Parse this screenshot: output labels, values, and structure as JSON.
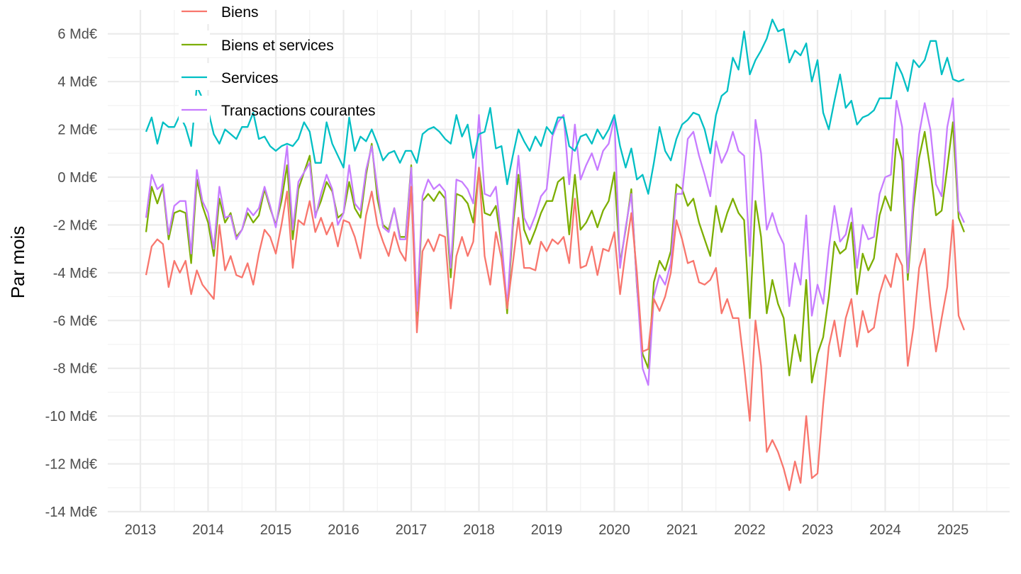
{
  "chart_data": {
    "type": "line",
    "ylabel": "Par mois",
    "xlabel": "",
    "x_start": "2013-02",
    "ylim": [
      -14,
      7
    ],
    "yticks": [
      {
        "value": 6,
        "label": "6 Md€"
      },
      {
        "value": 4,
        "label": "4 Md€"
      },
      {
        "value": 2,
        "label": "2 Md€"
      },
      {
        "value": 0,
        "label": "0 Md€"
      },
      {
        "value": -2,
        "label": "-2 Md€"
      },
      {
        "value": -4,
        "label": "-4 Md€"
      },
      {
        "value": -6,
        "label": "-6 Md€"
      },
      {
        "value": -8,
        "label": "-8 Md€"
      },
      {
        "value": -10,
        "label": "-10 Md€"
      },
      {
        "value": -12,
        "label": "-12 Md€"
      },
      {
        "value": -14,
        "label": "-14 Md€"
      }
    ],
    "xticks": [
      "2013",
      "2014",
      "2015",
      "2016",
      "2017",
      "2018",
      "2019",
      "2020",
      "2021",
      "2022",
      "2023",
      "2024",
      "2025"
    ],
    "grid": true,
    "legend_position": "top-left",
    "series": [
      {
        "name": "Biens",
        "color": "#F8766D",
        "values": [
          -4.1,
          -2.9,
          -2.6,
          -2.8,
          -4.6,
          -3.5,
          -4.0,
          -3.5,
          -4.9,
          -3.9,
          -4.5,
          -4.8,
          -5.1,
          -2.0,
          -3.9,
          -3.3,
          -4.1,
          -4.2,
          -3.6,
          -4.5,
          -3.2,
          -2.2,
          -2.5,
          -3.2,
          -2.0,
          -0.6,
          -3.8,
          -1.8,
          -2.0,
          -1.0,
          -2.3,
          -1.7,
          -2.4,
          -1.9,
          -2.9,
          -1.8,
          -1.9,
          -2.5,
          -3.4,
          -1.6,
          -0.6,
          -2.0,
          -2.7,
          -3.3,
          -2.3,
          -3.1,
          -3.5,
          -0.4,
          -6.5,
          -3.1,
          -2.6,
          -3.1,
          -2.4,
          -2.5,
          -5.5,
          -3.3,
          -2.5,
          -3.3,
          -2.7,
          0.4,
          -3.3,
          -4.5,
          -2.3,
          -3.4,
          -5.5,
          -3.6,
          -1.7,
          -3.8,
          -3.8,
          -3.9,
          -2.7,
          -3.1,
          -2.6,
          -2.8,
          -2.5,
          -3.6,
          -0.9,
          -3.8,
          -3.7,
          -2.9,
          -4.1,
          -3.0,
          -3.1,
          -2.3,
          -4.9,
          -3.1,
          -1.5,
          -4.0,
          -7.3,
          -7.2,
          -5.1,
          -5.6,
          -5.0,
          -4.0,
          -1.8,
          -2.6,
          -3.6,
          -3.5,
          -4.4,
          -4.5,
          -4.3,
          -3.8,
          -5.7,
          -5.1,
          -5.9,
          -5.9,
          -7.9,
          -10.2,
          -6.0,
          -7.9,
          -11.5,
          -11.0,
          -11.5,
          -12.2,
          -13.1,
          -11.9,
          -12.8,
          -10.0,
          -12.6,
          -12.4,
          -9.5,
          -7.1,
          -6.0,
          -7.5,
          -5.9,
          -5.1,
          -7.1,
          -5.6,
          -6.5,
          -6.3,
          -4.9,
          -4.1,
          -4.6,
          -3.2,
          -3.7,
          -7.9,
          -6.3,
          -3.8,
          -3.0,
          -5.4,
          -7.3,
          -5.9,
          -4.6,
          -1.8,
          -5.8,
          -6.4
        ]
      },
      {
        "name": "Biens et services",
        "color": "#7CAE00",
        "values": [
          -2.3,
          -0.4,
          -1.1,
          -0.4,
          -2.6,
          -1.5,
          -1.4,
          -1.5,
          -3.6,
          -0.1,
          -1.2,
          -1.9,
          -3.3,
          -0.9,
          -1.9,
          -1.5,
          -2.5,
          -2.2,
          -1.5,
          -1.9,
          -1.6,
          -0.5,
          -1.3,
          -2.0,
          -1.0,
          0.5,
          -2.6,
          -0.5,
          0.2,
          0.9,
          -1.6,
          -1.0,
          -0.2,
          -0.6,
          -1.7,
          -1.5,
          -0.2,
          -1.3,
          -1.7,
          0.1,
          1.4,
          -0.9,
          -2.0,
          -2.2,
          -1.3,
          -2.5,
          -2.5,
          0.5,
          -6.1,
          -1.0,
          -0.7,
          -1.0,
          -0.6,
          -0.9,
          -4.2,
          -0.7,
          -0.8,
          -1.1,
          -1.9,
          0.4,
          -1.5,
          -1.6,
          -1.2,
          -2.8,
          -5.7,
          -2.1,
          0.1,
          -2.2,
          -2.8,
          -2.2,
          -1.5,
          -1.0,
          -1.0,
          -0.2,
          0.0,
          -2.4,
          0.1,
          -2.2,
          -1.9,
          -1.4,
          -2.1,
          -1.4,
          -1.0,
          0.2,
          -3.6,
          -2.2,
          -0.5,
          -4.6,
          -7.4,
          -8.0,
          -4.4,
          -3.5,
          -3.9,
          -3.1,
          -0.3,
          -0.5,
          -1.2,
          -0.9,
          -1.9,
          -2.6,
          -3.3,
          -1.2,
          -2.3,
          -1.5,
          -0.9,
          -1.5,
          -1.8,
          -5.9,
          -1.0,
          -2.5,
          -5.7,
          -4.3,
          -5.3,
          -5.9,
          -8.3,
          -6.6,
          -7.7,
          -4.3,
          -8.6,
          -7.4,
          -6.7,
          -5.0,
          -2.7,
          -3.2,
          -3.0,
          -1.9,
          -4.9,
          -3.2,
          -3.9,
          -3.4,
          -1.6,
          -0.8,
          -1.4,
          1.6,
          0.7,
          -4.3,
          -1.3,
          0.8,
          1.9,
          0.3,
          -1.6,
          -1.4,
          0.4,
          2.3,
          -1.7,
          -2.3
        ]
      },
      {
        "name": "Services",
        "color": "#00BFC4",
        "values": [
          1.9,
          2.5,
          1.4,
          2.3,
          2.1,
          2.1,
          2.6,
          2.1,
          1.3,
          3.8,
          3.3,
          2.8,
          1.8,
          1.4,
          2.0,
          1.8,
          1.6,
          2.1,
          2.1,
          2.7,
          1.6,
          1.7,
          1.3,
          1.1,
          1.3,
          1.4,
          1.3,
          1.6,
          2.3,
          1.9,
          0.6,
          0.6,
          2.3,
          1.4,
          0.9,
          0.4,
          2.5,
          1.1,
          1.7,
          1.5,
          2.0,
          1.4,
          0.7,
          1.0,
          1.1,
          0.6,
          1.1,
          1.1,
          0.6,
          1.8,
          2.0,
          2.1,
          1.9,
          1.6,
          1.4,
          2.6,
          1.7,
          2.2,
          0.8,
          1.8,
          1.9,
          2.9,
          1.2,
          1.3,
          -0.3,
          0.9,
          2.0,
          1.5,
          1.1,
          1.7,
          1.3,
          2.1,
          1.8,
          2.5,
          2.5,
          1.3,
          1.1,
          1.7,
          1.8,
          1.4,
          2.0,
          1.6,
          2.0,
          2.6,
          1.3,
          0.4,
          1.2,
          -0.1,
          0.1,
          -0.7,
          0.6,
          2.1,
          1.1,
          0.7,
          1.6,
          2.2,
          2.4,
          2.7,
          2.6,
          2.0,
          1.0,
          2.6,
          3.4,
          3.6,
          5.0,
          4.5,
          6.1,
          4.3,
          4.9,
          5.3,
          5.8,
          6.6,
          6.1,
          6.2,
          4.8,
          5.3,
          5.1,
          5.6,
          4.0,
          4.9,
          2.7,
          2.0,
          3.2,
          4.3,
          2.9,
          3.2,
          2.2,
          2.5,
          2.6,
          2.8,
          3.3,
          3.3,
          3.3,
          4.8,
          4.3,
          3.6,
          4.9,
          4.6,
          4.9,
          5.7,
          5.7,
          4.3,
          5.0,
          4.1,
          4.0,
          4.1
        ]
      },
      {
        "name": "Transactions courantes",
        "color": "#C77CFF",
        "values": [
          -1.7,
          0.1,
          -0.5,
          -0.3,
          -2.4,
          -1.2,
          -1.0,
          -1.0,
          -3.2,
          0.3,
          -1.0,
          -1.5,
          -3.0,
          -0.4,
          -1.7,
          -1.6,
          -2.6,
          -2.2,
          -1.3,
          -1.6,
          -1.3,
          -0.4,
          -1.2,
          -2.1,
          -0.6,
          1.3,
          -2.2,
          -0.2,
          0.2,
          0.6,
          -1.7,
          -0.7,
          0.1,
          -0.5,
          -2.0,
          -1.5,
          0.5,
          -1.1,
          -1.4,
          0.3,
          1.3,
          -0.5,
          -2.1,
          -2.3,
          -1.3,
          -2.6,
          -2.6,
          0.4,
          -5.6,
          -0.8,
          -0.1,
          -0.5,
          -0.3,
          -0.6,
          -3.8,
          -0.1,
          -0.2,
          -0.5,
          -1.1,
          2.6,
          -0.7,
          -0.8,
          -0.4,
          -2.6,
          -5.4,
          -1.8,
          0.9,
          -1.7,
          -2.2,
          -1.6,
          -0.8,
          -0.5,
          1.7,
          2.3,
          2.6,
          -0.3,
          2.2,
          -0.1,
          0.5,
          1.0,
          0.3,
          1.1,
          1.4,
          2.5,
          -3.8,
          -2.1,
          -0.7,
          -4.5,
          -8.0,
          -8.7,
          -5.0,
          -4.1,
          -4.5,
          -3.6,
          -0.7,
          -0.7,
          1.6,
          1.9,
          0.9,
          0.1,
          -0.8,
          1.5,
          0.6,
          1.1,
          1.9,
          1.1,
          0.9,
          -3.3,
          2.4,
          1.0,
          -2.2,
          -1.5,
          -2.3,
          -2.8,
          -5.4,
          -3.6,
          -4.5,
          -1.6,
          -5.8,
          -4.5,
          -5.3,
          -3.0,
          -1.2,
          -2.7,
          -2.4,
          -1.3,
          -3.8,
          -2.0,
          -2.6,
          -2.5,
          -0.7,
          0.0,
          0.1,
          3.2,
          2.1,
          -4.0,
          -0.8,
          1.8,
          3.1,
          2.0,
          -0.3,
          -0.8,
          2.1,
          3.3,
          -1.4,
          -1.9
        ]
      }
    ]
  }
}
